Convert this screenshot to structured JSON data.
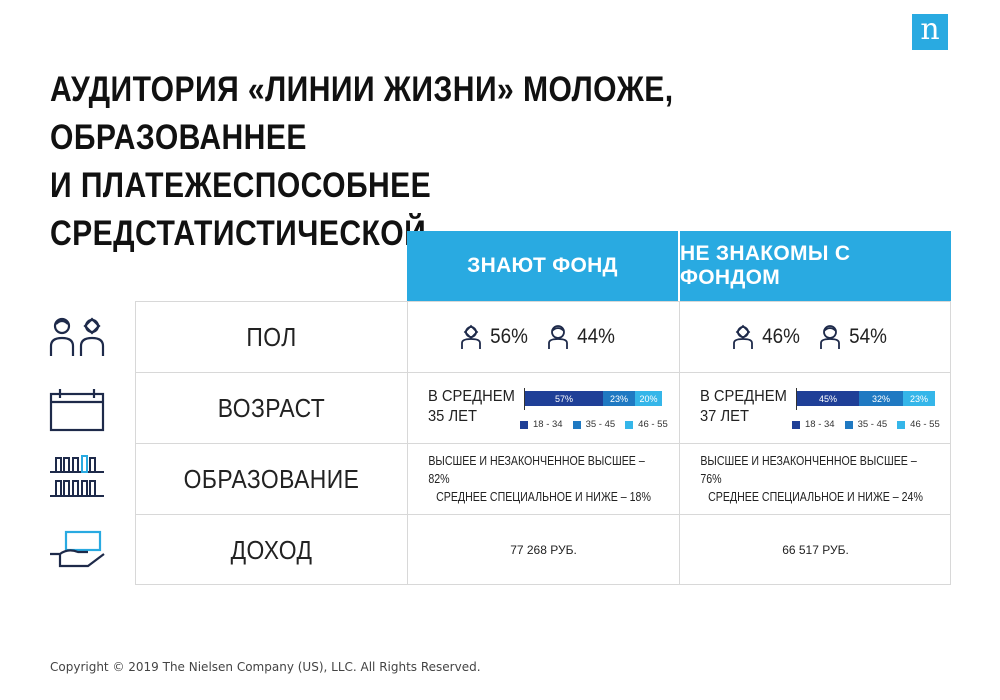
{
  "logo": {
    "letter": "n",
    "color": "#29aae1"
  },
  "title": {
    "line1": "АУДИТОРИЯ «ЛИНИИ ЖИЗНИ» МОЛОЖЕ, ОБРАЗОВАННЕЕ",
    "line2": "И ПЛАТЕЖЕСПОСОБНЕЕ СРЕДСТАТИСТИЧЕСКОЙ"
  },
  "table": {
    "columns": [
      "ЗНАЮТ ФОНД",
      "НЕ ЗНАКОМЫ С ФОНДОМ"
    ],
    "header_color": "#29aae1",
    "rows": {
      "sex": {
        "label": "ПОЛ",
        "icon": "people-icon",
        "values": [
          {
            "female": "56%",
            "male": "44%"
          },
          {
            "female": "46%",
            "male": "54%"
          }
        ]
      },
      "age": {
        "label": "ВОЗРАСТ",
        "icon": "calendar-icon",
        "values": [
          {
            "avg_line1": "В СРЕДНЕМ",
            "avg_line2": "35 ЛЕТ",
            "segments": [
              {
                "group": "18 - 34",
                "value": 57,
                "label": "57%"
              },
              {
                "group": "35 - 45",
                "value": 23,
                "label": "23%"
              },
              {
                "group": "46 - 55",
                "value": 20,
                "label": "20%"
              }
            ]
          },
          {
            "avg_line1": "В СРЕДНЕМ",
            "avg_line2": "37 ЛЕТ",
            "segments": [
              {
                "group": "18 - 34",
                "value": 45,
                "label": "45%"
              },
              {
                "group": "35 - 45",
                "value": 32,
                "label": "32%"
              },
              {
                "group": "46 - 55",
                "value": 23,
                "label": "23%"
              }
            ]
          }
        ],
        "legend": [
          "18 - 34",
          "35 - 45",
          "46 - 55"
        ],
        "colors": [
          "#1f3f97",
          "#1f79c2",
          "#35b6e9"
        ]
      },
      "education": {
        "label": "ОБРАЗОВАНИЕ",
        "icon": "books-icon",
        "values": [
          {
            "line1": "ВЫСШЕЕ И НЕЗАКОНЧЕННОЕ ВЫСШЕЕ – 82%",
            "line2": "СРЕДНЕЕ СПЕЦИАЛЬНОЕ И НИЖЕ – 18%"
          },
          {
            "line1": "ВЫСШЕЕ И НЕЗАКОНЧЕННОЕ ВЫСШЕЕ – 76%",
            "line2": "СРЕДНЕЕ СПЕЦИАЛЬНОЕ И НИЖЕ – 24%"
          }
        ]
      },
      "income": {
        "label": "ДОХОД",
        "icon": "money-hand-icon",
        "values": [
          "77 268 РУБ.",
          "66 517 РУБ."
        ]
      }
    }
  },
  "footer": "Copyright © 2019 The Nielsen Company (US), LLC. All Rights Reserved."
}
